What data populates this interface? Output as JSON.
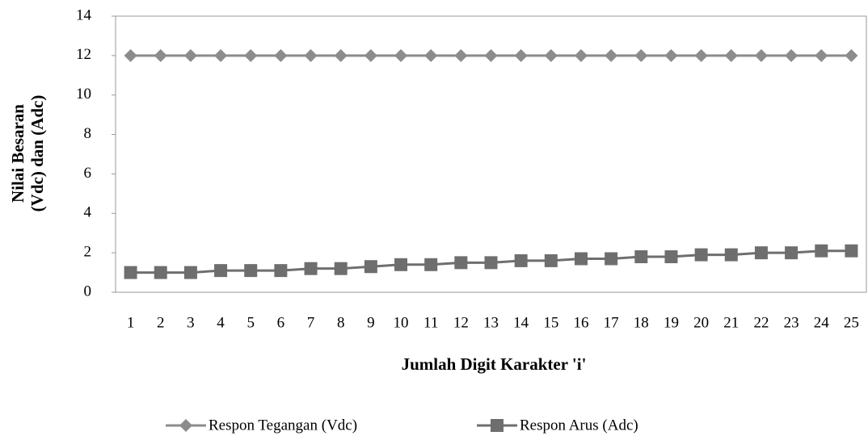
{
  "chart_data": {
    "type": "line",
    "x_label": "Jumlah Digit Karakter 'i'",
    "y_label": [
      "Nilai Besaran",
      "(Vdc) dan (Adc)"
    ],
    "categories": [
      "1",
      "2",
      "3",
      "4",
      "5",
      "6",
      "7",
      "8",
      "9",
      "10",
      "11",
      "12",
      "13",
      "14",
      "15",
      "16",
      "17",
      "18",
      "19",
      "20",
      "21",
      "22",
      "23",
      "24",
      "25"
    ],
    "series": [
      {
        "name": "Respon Tegangan (Vdc)",
        "color": "#8c8c8c",
        "marker": "diamond",
        "values": [
          12,
          12,
          12,
          12,
          12,
          12,
          12,
          12,
          12,
          12,
          12,
          12,
          12,
          12,
          12,
          12,
          12,
          12,
          12,
          12,
          12,
          12,
          12,
          12,
          12
        ]
      },
      {
        "name": "Respon Arus (Adc)",
        "color": "#6e6e6e",
        "marker": "square",
        "values": [
          1.0,
          1.0,
          1.0,
          1.1,
          1.1,
          1.1,
          1.2,
          1.2,
          1.3,
          1.4,
          1.4,
          1.5,
          1.5,
          1.6,
          1.6,
          1.7,
          1.7,
          1.8,
          1.8,
          1.9,
          1.9,
          2.0,
          2.0,
          2.1,
          2.1
        ]
      }
    ],
    "ylim": [
      0,
      14
    ],
    "yticks": [
      0,
      2,
      4,
      6,
      8,
      10,
      12,
      14
    ],
    "grid": false,
    "legend": "bottom"
  }
}
